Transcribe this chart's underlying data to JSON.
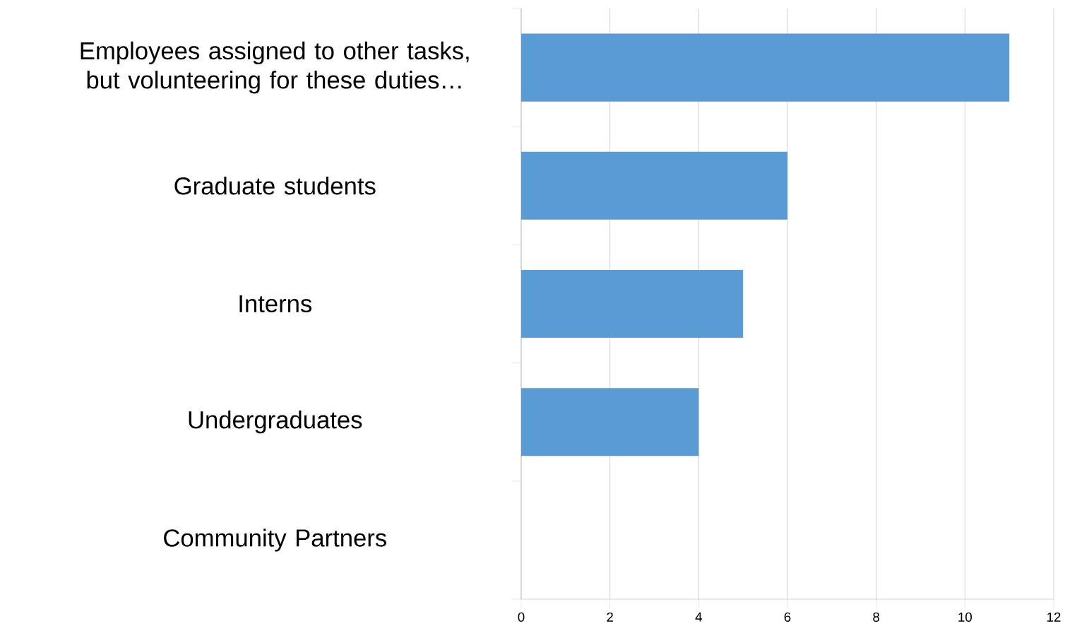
{
  "chart_data": {
    "type": "bar",
    "orientation": "horizontal",
    "categories": [
      "Employees assigned to other tasks, but volunteering for these duties…",
      "Graduate students",
      "Interns",
      "Undergraduates",
      "Community Partners"
    ],
    "values": [
      11,
      6,
      5,
      4,
      0
    ],
    "color": "#5b9bd5",
    "xlim": [
      0,
      12
    ],
    "xticks": [
      0,
      2,
      4,
      6,
      8,
      10,
      12
    ],
    "grid": "x"
  }
}
